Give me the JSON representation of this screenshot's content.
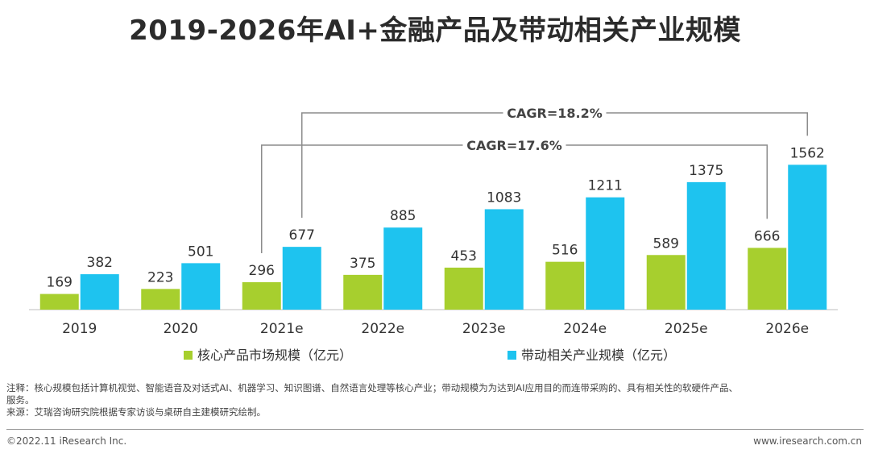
{
  "title": "2019-2026年AI+金融产品及带动相关产业规模",
  "chart_data": {
    "type": "bar",
    "categories": [
      "2019",
      "2020",
      "2021e",
      "2022e",
      "2023e",
      "2024e",
      "2025e",
      "2026e"
    ],
    "series": [
      {
        "name": "核心产品市场规模（亿元）",
        "color": "#a7cf2e",
        "values": [
          169,
          223,
          296,
          375,
          453,
          516,
          589,
          666
        ]
      },
      {
        "name": "带动相关产业规模（亿元）",
        "color": "#1ec3ef",
        "values": [
          382,
          501,
          677,
          885,
          1083,
          1211,
          1375,
          1562
        ]
      }
    ],
    "ylim": [
      0,
      1800
    ],
    "grid": false,
    "legend_position": "bottom",
    "annotations": [
      {
        "text": "CAGR=18.2%",
        "series": 1,
        "from": "2021e",
        "to": "2026e"
      },
      {
        "text": "CAGR=17.6%",
        "series": 0,
        "from": "2021e",
        "to": "2026e"
      }
    ]
  },
  "notes": {
    "line1": "注释：核心规模包括计算机视觉、智能语音及对话式AI、机器学习、知识图谱、自然语言处理等核心产业；带动规模为为达到AI应用目的而连带采购的、具有相关性的软硬件产品、",
    "line2": "服务。",
    "line3": "来源：艾瑞咨询研究院根据专家访谈与桌研自主建模研究绘制。"
  },
  "footer": {
    "copyright": "©2022.11 iResearch Inc.",
    "website": "www.iresearch.com.cn"
  }
}
